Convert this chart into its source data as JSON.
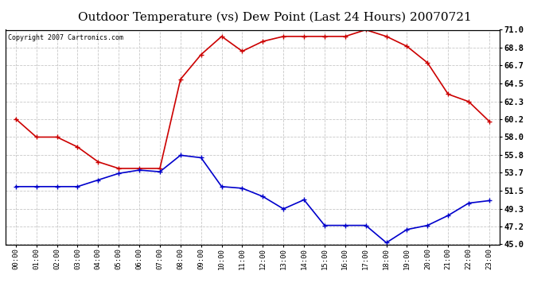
{
  "title": "Outdoor Temperature (vs) Dew Point (Last 24 Hours) 20070721",
  "copyright_text": "Copyright 2007 Cartronics.com",
  "hours": [
    "00:00",
    "01:00",
    "02:00",
    "03:00",
    "04:00",
    "05:00",
    "06:00",
    "07:00",
    "08:00",
    "09:00",
    "10:00",
    "11:00",
    "12:00",
    "13:00",
    "14:00",
    "15:00",
    "16:00",
    "17:00",
    "18:00",
    "19:00",
    "20:00",
    "21:00",
    "22:00",
    "23:00"
  ],
  "temp": [
    60.2,
    58.0,
    58.0,
    56.8,
    55.0,
    54.2,
    54.2,
    54.2,
    65.0,
    68.0,
    70.2,
    68.4,
    69.6,
    70.2,
    70.2,
    70.2,
    70.2,
    71.0,
    70.2,
    69.0,
    67.0,
    63.2,
    62.3,
    59.9
  ],
  "dew": [
    52.0,
    52.0,
    52.0,
    52.0,
    52.8,
    53.6,
    54.0,
    53.8,
    55.8,
    55.5,
    52.0,
    51.8,
    50.8,
    49.3,
    50.4,
    47.3,
    47.3,
    47.3,
    45.2,
    46.8,
    47.3,
    48.5,
    50.0,
    50.3
  ],
  "ylim": [
    45.0,
    71.0
  ],
  "yticks": [
    45.0,
    47.2,
    49.3,
    51.5,
    53.7,
    55.8,
    58.0,
    60.2,
    62.3,
    64.5,
    66.7,
    68.8,
    71.0
  ],
  "temp_color": "#cc0000",
  "dew_color": "#0000cc",
  "bg_color": "#ffffff",
  "grid_color": "#c8c8c8",
  "title_fontsize": 11,
  "marker": "+",
  "marker_size": 5,
  "line_width": 1.2
}
